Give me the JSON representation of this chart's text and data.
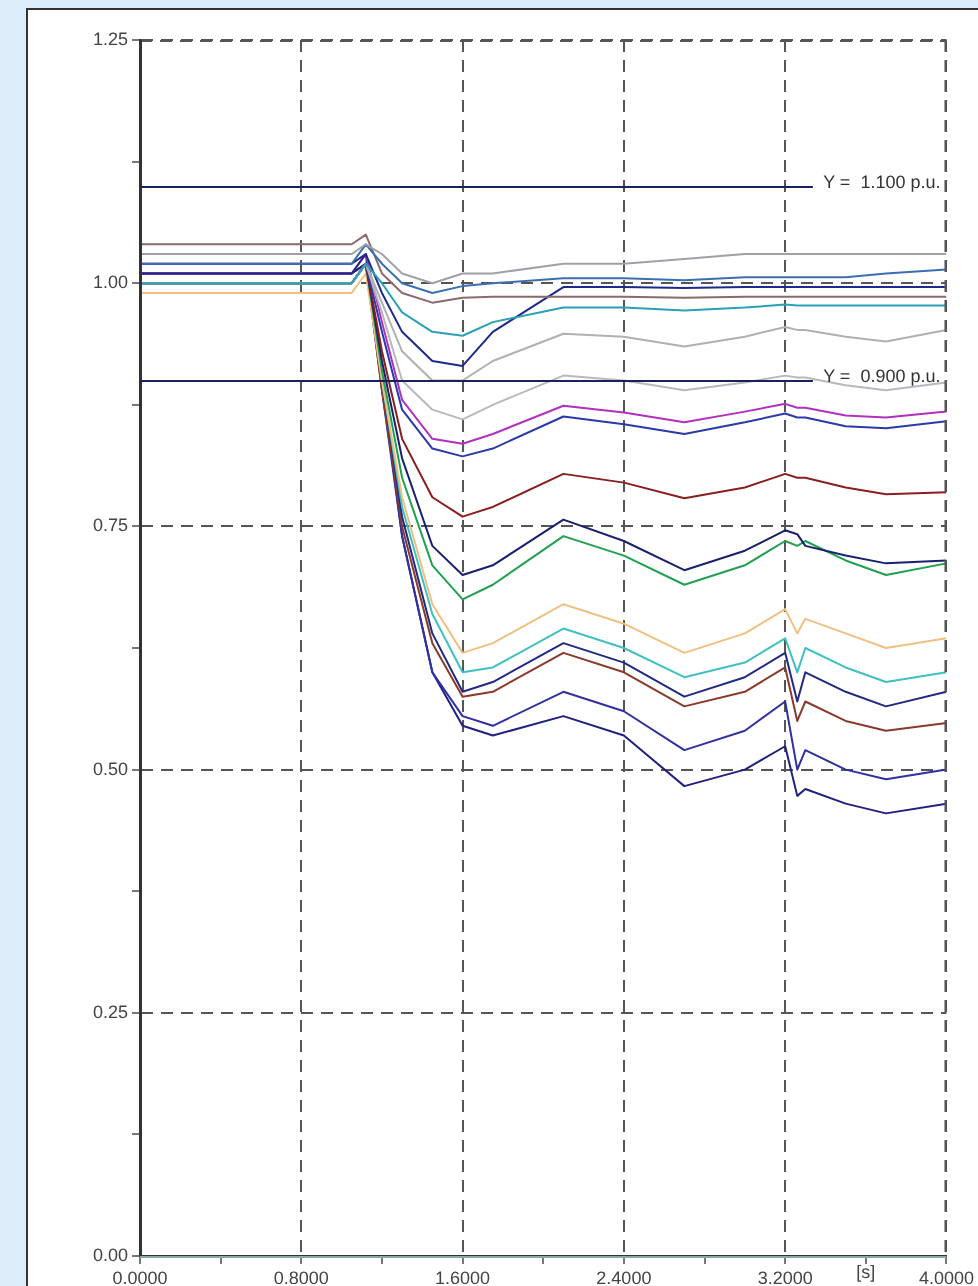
{
  "chart_data": {
    "type": "line",
    "xlabel": "[s]",
    "x": [
      0,
      1.05,
      1.12,
      1.2,
      1.3,
      1.45,
      1.6,
      1.75,
      2.1,
      2.4,
      2.7,
      3.0,
      3.2,
      3.26,
      3.3,
      3.5,
      3.7,
      4.0
    ],
    "xlim": [
      0,
      4
    ],
    "ylim": [
      0,
      1.25
    ],
    "xticks": [
      {
        "value": 0,
        "label": "0.0000"
      },
      {
        "value": 0.4,
        "label": null
      },
      {
        "value": 0.8,
        "label": "0.8000"
      },
      {
        "value": 1.2,
        "label": null
      },
      {
        "value": 1.6,
        "label": "1.6000"
      },
      {
        "value": 2.0,
        "label": null
      },
      {
        "value": 2.4,
        "label": "2.4000"
      },
      {
        "value": 2.8,
        "label": null
      },
      {
        "value": 3.2,
        "label": "3.2000"
      },
      {
        "value": 3.6,
        "label": null
      },
      {
        "value": 4,
        "label": "4.0000"
      }
    ],
    "yticks": [
      {
        "value": 0,
        "label": "0.00"
      },
      {
        "value": 0.125,
        "label": null
      },
      0.25,
      {
        "value": 0.375,
        "label": null
      },
      {
        "value": 0.5,
        "label": "0.50"
      },
      {
        "value": 0.625,
        "label": null
      },
      0.75,
      {
        "value": 0.875,
        "label": null
      },
      {
        "value": 1,
        "label": "1.00"
      },
      {
        "value": 1.125,
        "label": null
      },
      1.25
    ],
    "grid": true,
    "legend": false,
    "marker": "none",
    "ref_lines": [
      {
        "axis": "y",
        "value": 1.1,
        "label": "Y =  1.100 p.u.",
        "color": "#1a1f5e"
      },
      {
        "axis": "y",
        "value": 0.9,
        "label": "Y =  0.900 p.u.",
        "color": "#1a1f5e"
      }
    ],
    "series": [
      {
        "color": "#a0a0a8",
        "values": [
          1.03,
          1.03,
          1.04,
          1.03,
          1.01,
          1.0,
          1.01,
          1.01,
          1.02,
          1.02,
          1.025,
          1.03,
          1.03,
          1.03,
          1.03,
          1.03,
          1.03,
          1.03
        ]
      },
      {
        "color": "#3a6fb0",
        "values": [
          1.02,
          1.02,
          1.04,
          1.02,
          1.0,
          0.99,
          0.997,
          1.0,
          1.005,
          1.005,
          1.003,
          1.006,
          1.006,
          1.006,
          1.006,
          1.006,
          1.01,
          1.014
        ]
      },
      {
        "color": "#8a6a6a",
        "values": [
          1.04,
          1.04,
          1.05,
          1.01,
          0.99,
          0.98,
          0.985,
          0.986,
          0.986,
          0.986,
          0.985,
          0.986,
          0.986,
          0.986,
          0.986,
          0.986,
          0.986,
          0.986
        ]
      },
      {
        "color": "#2aa0b8",
        "values": [
          1.0,
          1.0,
          1.02,
          1.0,
          0.97,
          0.95,
          0.946,
          0.96,
          0.975,
          0.975,
          0.972,
          0.975,
          0.978,
          0.977,
          0.977,
          0.977,
          0.977,
          0.977
        ]
      },
      {
        "color": "#1e2a8a",
        "values": [
          1.01,
          1.01,
          1.03,
          0.99,
          0.95,
          0.92,
          0.915,
          0.95,
          0.996,
          0.996,
          0.995,
          0.996,
          0.996,
          0.996,
          0.996,
          0.996,
          0.996,
          0.996
        ]
      },
      {
        "color": "#b0b0b0",
        "values": [
          1.0,
          1.0,
          1.02,
          0.98,
          0.93,
          0.9,
          0.9,
          0.92,
          0.948,
          0.945,
          0.935,
          0.945,
          0.955,
          0.952,
          0.952,
          0.945,
          0.94,
          0.952
        ]
      },
      {
        "color": "#b8b8c0",
        "values": [
          1.0,
          1.0,
          1.02,
          0.97,
          0.9,
          0.87,
          0.86,
          0.875,
          0.905,
          0.9,
          0.89,
          0.898,
          0.905,
          0.903,
          0.903,
          0.895,
          0.89,
          0.898
        ]
      },
      {
        "color": "#b030c0",
        "values": [
          1.01,
          1.01,
          1.03,
          0.96,
          0.88,
          0.84,
          0.835,
          0.845,
          0.874,
          0.867,
          0.857,
          0.868,
          0.876,
          0.872,
          0.872,
          0.864,
          0.862,
          0.868
        ]
      },
      {
        "color": "#2a3aa8",
        "values": [
          1.0,
          1.0,
          1.02,
          0.95,
          0.87,
          0.83,
          0.822,
          0.83,
          0.863,
          0.855,
          0.845,
          0.857,
          0.866,
          0.862,
          0.862,
          0.853,
          0.851,
          0.858
        ]
      },
      {
        "color": "#8a1e1e",
        "values": [
          1.0,
          1.0,
          1.02,
          0.93,
          0.84,
          0.78,
          0.76,
          0.77,
          0.804,
          0.795,
          0.779,
          0.79,
          0.804,
          0.8,
          0.8,
          0.79,
          0.783,
          0.785
        ]
      },
      {
        "color": "#1a2070",
        "values": [
          1.01,
          1.01,
          1.02,
          0.92,
          0.82,
          0.73,
          0.7,
          0.71,
          0.757,
          0.735,
          0.705,
          0.725,
          0.746,
          0.742,
          0.73,
          0.72,
          0.712,
          0.715
        ]
      },
      {
        "color": "#20a050",
        "values": [
          1.0,
          1.0,
          1.02,
          0.91,
          0.8,
          0.71,
          0.675,
          0.69,
          0.74,
          0.72,
          0.69,
          0.71,
          0.735,
          0.73,
          0.735,
          0.715,
          0.7,
          0.712
        ]
      },
      {
        "color": "#f0c080",
        "values": [
          0.99,
          0.99,
          1.01,
          0.9,
          0.78,
          0.67,
          0.62,
          0.63,
          0.67,
          0.65,
          0.62,
          0.64,
          0.665,
          0.64,
          0.655,
          0.64,
          0.625,
          0.635
        ]
      },
      {
        "color": "#40c0c0",
        "values": [
          1.0,
          1.0,
          1.02,
          0.9,
          0.77,
          0.66,
          0.6,
          0.605,
          0.645,
          0.625,
          0.595,
          0.61,
          0.635,
          0.6,
          0.625,
          0.605,
          0.59,
          0.6
        ]
      },
      {
        "color": "#202a80",
        "values": [
          1.01,
          1.01,
          1.02,
          0.9,
          0.76,
          0.64,
          0.58,
          0.59,
          0.63,
          0.61,
          0.575,
          0.595,
          0.62,
          0.57,
          0.6,
          0.58,
          0.565,
          0.58
        ]
      },
      {
        "color": "#8a3a2a",
        "values": [
          1.0,
          1.0,
          1.02,
          0.89,
          0.75,
          0.63,
          0.575,
          0.58,
          0.62,
          0.6,
          0.565,
          0.58,
          0.605,
          0.55,
          0.57,
          0.55,
          0.54,
          0.548
        ]
      },
      {
        "color": "#3030a0",
        "values": [
          1.0,
          1.0,
          1.02,
          0.89,
          0.74,
          0.6,
          0.555,
          0.545,
          0.58,
          0.56,
          0.52,
          0.54,
          0.57,
          0.5,
          0.52,
          0.5,
          0.49,
          0.5
        ]
      },
      {
        "color": "#202080",
        "values": [
          1.02,
          1.02,
          1.03,
          0.9,
          0.74,
          0.6,
          0.545,
          0.535,
          0.555,
          0.535,
          0.483,
          0.5,
          0.524,
          0.473,
          0.48,
          0.465,
          0.455,
          0.465
        ]
      }
    ]
  }
}
